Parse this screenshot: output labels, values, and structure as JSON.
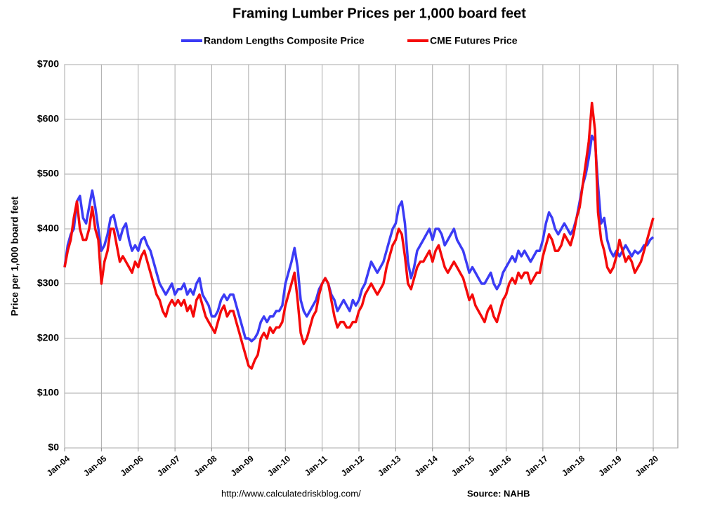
{
  "chart_data": {
    "type": "line",
    "title": "Framing Lumber Prices per 1,000 board feet",
    "ylabel": "Price per 1,000 board feet",
    "footer_left": "http://www.calculatedriskblog.com/",
    "footer_right": "Source: NAHB",
    "categories": [
      "Jan-04",
      null,
      null,
      null,
      null,
      null,
      null,
      null,
      null,
      null,
      null,
      null,
      "Jan-05",
      null,
      null,
      null,
      null,
      null,
      null,
      null,
      null,
      null,
      null,
      null,
      "Jan-06",
      null,
      null,
      null,
      null,
      null,
      null,
      null,
      null,
      null,
      null,
      null,
      "Jan-07",
      null,
      null,
      null,
      null,
      null,
      null,
      null,
      null,
      null,
      null,
      null,
      "Jan-08",
      null,
      null,
      null,
      null,
      null,
      null,
      null,
      null,
      null,
      null,
      null,
      "Jan-09",
      null,
      null,
      null,
      null,
      null,
      null,
      null,
      null,
      null,
      null,
      null,
      "Jan-10",
      null,
      null,
      null,
      null,
      null,
      null,
      null,
      null,
      null,
      null,
      null,
      "Jan-11",
      null,
      null,
      null,
      null,
      null,
      null,
      null,
      null,
      null,
      null,
      null,
      "Jan-12",
      null,
      null,
      null,
      null,
      null,
      null,
      null,
      null,
      null,
      null,
      null,
      "Jan-13",
      null,
      null,
      null,
      null,
      null,
      null,
      null,
      null,
      null,
      null,
      null,
      "Jan-14",
      null,
      null,
      null,
      null,
      null,
      null,
      null,
      null,
      null,
      null,
      null,
      "Jan-15",
      null,
      null,
      null,
      null,
      null,
      null,
      null,
      null,
      null,
      null,
      null,
      "Jan-16",
      null,
      null,
      null,
      null,
      null,
      null,
      null,
      null,
      null,
      null,
      null,
      "Jan-17",
      null,
      null,
      null,
      null,
      null,
      null,
      null,
      null,
      null,
      null,
      null,
      "Jan-18",
      null,
      null,
      null,
      null,
      null,
      null,
      null,
      null,
      null,
      null,
      null,
      "Jan-19",
      null,
      null,
      null,
      null,
      null,
      null,
      null,
      null,
      null,
      null,
      null,
      "Jan-20"
    ],
    "series": [
      {
        "name": "Random Lengths Composite Price",
        "color": "#3b3bf5",
        "values": [
          330,
          370,
          390,
          400,
          450,
          460,
          420,
          410,
          440,
          470,
          440,
          400,
          360,
          370,
          390,
          420,
          425,
          400,
          380,
          400,
          410,
          380,
          360,
          370,
          360,
          380,
          385,
          370,
          360,
          340,
          320,
          300,
          290,
          280,
          290,
          300,
          280,
          290,
          290,
          300,
          280,
          290,
          280,
          300,
          310,
          280,
          270,
          260,
          240,
          240,
          250,
          270,
          280,
          270,
          280,
          280,
          260,
          240,
          220,
          200,
          200,
          195,
          200,
          210,
          230,
          240,
          230,
          240,
          240,
          250,
          250,
          260,
          300,
          320,
          340,
          365,
          330,
          270,
          250,
          240,
          250,
          260,
          270,
          290,
          300,
          310,
          300,
          280,
          270,
          250,
          260,
          270,
          260,
          250,
          270,
          260,
          270,
          290,
          300,
          320,
          340,
          330,
          320,
          330,
          340,
          360,
          380,
          400,
          410,
          440,
          450,
          410,
          340,
          310,
          330,
          360,
          370,
          380,
          390,
          400,
          380,
          400,
          400,
          390,
          370,
          380,
          390,
          400,
          380,
          370,
          360,
          340,
          320,
          330,
          320,
          310,
          300,
          300,
          310,
          320,
          300,
          290,
          300,
          320,
          330,
          340,
          350,
          340,
          360,
          350,
          360,
          350,
          340,
          350,
          360,
          360,
          380,
          410,
          430,
          420,
          400,
          390,
          400,
          410,
          400,
          390,
          400,
          420,
          450,
          480,
          500,
          530,
          570,
          560,
          480,
          410,
          420,
          380,
          360,
          350,
          360,
          350,
          360,
          370,
          360,
          350,
          360,
          355,
          360,
          370,
          370,
          380,
          385
        ]
      },
      {
        "name": "CME Futures Price",
        "color": "#f50a0a",
        "values": [
          330,
          360,
          380,
          420,
          450,
          400,
          380,
          380,
          400,
          440,
          400,
          380,
          300,
          340,
          360,
          400,
          400,
          370,
          340,
          350,
          340,
          330,
          320,
          340,
          330,
          350,
          360,
          340,
          320,
          300,
          280,
          270,
          250,
          240,
          260,
          270,
          260,
          270,
          260,
          270,
          250,
          260,
          240,
          270,
          280,
          260,
          240,
          230,
          220,
          210,
          230,
          250,
          260,
          240,
          250,
          250,
          230,
          210,
          190,
          170,
          150,
          145,
          160,
          170,
          200,
          210,
          200,
          220,
          210,
          220,
          220,
          230,
          260,
          280,
          300,
          320,
          270,
          210,
          190,
          200,
          220,
          240,
          250,
          280,
          300,
          310,
          300,
          270,
          240,
          220,
          230,
          230,
          220,
          220,
          230,
          230,
          250,
          260,
          280,
          290,
          300,
          290,
          280,
          290,
          300,
          330,
          350,
          370,
          380,
          400,
          390,
          350,
          300,
          290,
          310,
          330,
          340,
          340,
          350,
          360,
          340,
          360,
          370,
          350,
          330,
          320,
          330,
          340,
          330,
          320,
          310,
          290,
          270,
          280,
          260,
          250,
          240,
          230,
          250,
          260,
          240,
          230,
          250,
          270,
          280,
          300,
          310,
          300,
          320,
          310,
          320,
          320,
          300,
          310,
          320,
          320,
          350,
          370,
          390,
          380,
          360,
          360,
          370,
          390,
          380,
          370,
          390,
          420,
          440,
          480,
          520,
          560,
          630,
          580,
          430,
          380,
          360,
          330,
          320,
          330,
          350,
          380,
          360,
          340,
          350,
          340,
          320,
          330,
          340,
          360,
          380,
          400,
          420
        ]
      }
    ],
    "ylim": [
      0,
      700
    ],
    "yticks": [
      {
        "value": 0,
        "label": "$0"
      },
      {
        "value": 100,
        "label": "$100"
      },
      {
        "value": 200,
        "label": "$200"
      },
      {
        "value": 300,
        "label": "$300"
      },
      {
        "value": 400,
        "label": "$400"
      },
      {
        "value": 500,
        "label": "$500"
      },
      {
        "value": 600,
        "label": "$600"
      },
      {
        "value": 700,
        "label": "$700"
      }
    ],
    "grid": true
  }
}
